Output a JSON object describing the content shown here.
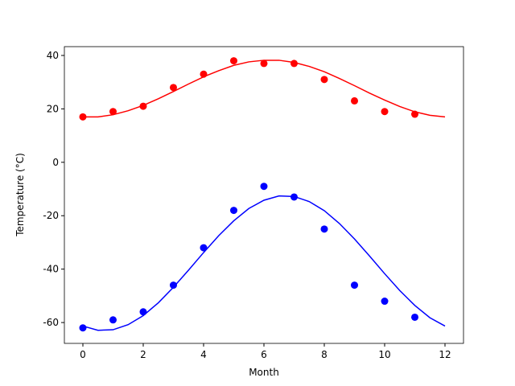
{
  "chart_data": {
    "type": "scatter",
    "x_label": "Month",
    "y_label": "Temperature (°C)",
    "xlim": [
      -0.613,
      12.613
    ],
    "ylim": [
      -67.8,
      43.3
    ],
    "xticks": [
      0,
      2,
      4,
      6,
      8,
      10,
      12
    ],
    "yticks": [
      -60,
      -40,
      -20,
      0,
      20,
      40
    ],
    "series": [
      {
        "type": "scatter",
        "color": "#ff0000",
        "x": [
          0,
          1,
          2,
          3,
          4,
          5,
          6,
          7,
          8,
          9,
          10,
          11
        ],
        "values": [
          17,
          19,
          21,
          28,
          33,
          38,
          37,
          37,
          31,
          23,
          19,
          18
        ]
      },
      {
        "type": "scatter",
        "color": "#0000ff",
        "x": [
          0,
          1,
          2,
          3,
          4,
          5,
          6,
          7,
          8,
          9,
          10,
          11
        ],
        "values": [
          -62,
          -59,
          -56,
          -46,
          -32,
          -18,
          -9,
          -13,
          -25,
          -46,
          -52,
          -58
        ]
      },
      {
        "type": "line",
        "color": "#ff0000",
        "x": [
          0,
          0.5,
          1,
          1.5,
          2,
          2.5,
          3,
          3.5,
          4,
          4.5,
          5,
          5.5,
          6,
          6.5,
          7,
          7.5,
          8,
          8.5,
          9,
          9.5,
          10,
          10.5,
          11,
          11.5,
          12
        ],
        "values": [
          17.0,
          17.0,
          17.8,
          19.3,
          21.3,
          23.8,
          26.5,
          29.3,
          32.0,
          34.3,
          36.3,
          37.6,
          38.2,
          38.2,
          37.4,
          35.9,
          33.9,
          31.4,
          28.7,
          25.9,
          23.3,
          20.9,
          18.9,
          17.6,
          17.0
        ]
      },
      {
        "type": "line",
        "color": "#0000ff",
        "x": [
          0,
          0.5,
          1,
          1.5,
          2,
          2.5,
          3,
          3.5,
          4,
          4.5,
          5,
          5.5,
          6,
          6.5,
          7,
          7.5,
          8,
          8.5,
          9,
          9.5,
          10,
          10.5,
          11,
          11.5,
          12
        ],
        "values": [
          -61.3,
          -62.9,
          -62.7,
          -60.8,
          -57.4,
          -52.6,
          -46.8,
          -40.4,
          -33.8,
          -27.5,
          -21.9,
          -17.3,
          -14.2,
          -12.6,
          -12.8,
          -14.7,
          -18.1,
          -22.9,
          -28.7,
          -35.1,
          -41.7,
          -48.0,
          -53.6,
          -58.2,
          -61.3
        ]
      }
    ]
  }
}
